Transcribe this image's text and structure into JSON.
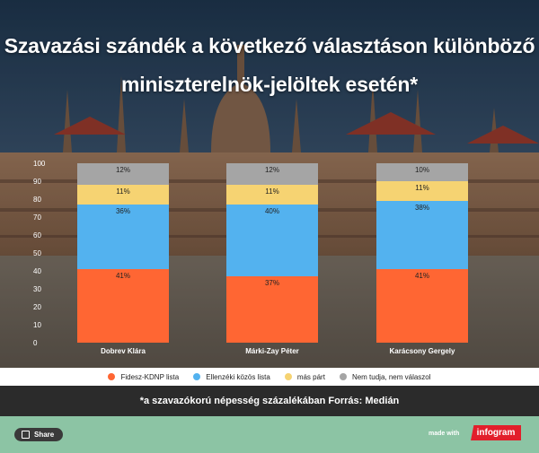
{
  "header": {
    "title_line1": "Szavazási szándék a következő választáson különböző",
    "title_line2": "miniszterelnök-jelöltek esetén*"
  },
  "chart_data": {
    "type": "bar",
    "stacked": true,
    "categories": [
      "Dobrev Klára",
      "Márki-Zay Péter",
      "Karácsony Gergely"
    ],
    "series": [
      {
        "name": "Fidesz-KDNP lista",
        "values": [
          41,
          37,
          41
        ],
        "color": "#ff6633",
        "labels": [
          "41%",
          "37%",
          "41%"
        ]
      },
      {
        "name": "Ellenzéki közös lista",
        "values": [
          36,
          40,
          38
        ],
        "color": "#53b2ef",
        "labels": [
          "36%",
          "40%",
          "38%"
        ]
      },
      {
        "name": "más párt",
        "values": [
          11,
          11,
          11
        ],
        "color": "#f6d372",
        "labels": [
          "11%",
          "11%",
          "11%"
        ]
      },
      {
        "name": "Nem tudja, nem válaszol",
        "values": [
          12,
          12,
          10
        ],
        "color": "#a5a5a5",
        "labels": [
          "12%",
          "12%",
          "10%"
        ]
      }
    ],
    "ylim": [
      0,
      100
    ],
    "yticks": [
      0,
      10,
      20,
      30,
      40,
      50,
      60,
      70,
      80,
      90,
      100
    ],
    "legend_position": "bottom",
    "grid": false
  },
  "footnote": "*a szavazókorú népesség százalékában Forrás: Medián",
  "bottom_bar": {
    "share_label": "Share",
    "made_with": "made with",
    "brand": "infogram"
  }
}
